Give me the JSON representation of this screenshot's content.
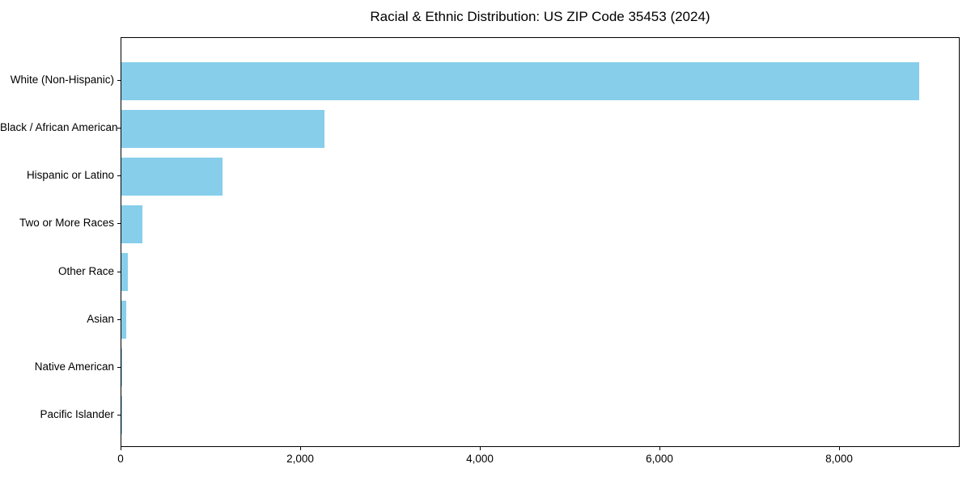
{
  "chart_data": {
    "type": "bar",
    "orientation": "horizontal",
    "title": "Racial & Ethnic Distribution: US ZIP Code 35453 (2024)",
    "categories": [
      "White (Non-Hispanic)",
      "Black / African American",
      "Hispanic or Latino",
      "Two or More Races",
      "Other Race",
      "Asian",
      "Native American",
      "Pacific Islander"
    ],
    "values": [
      8880,
      2260,
      1130,
      235,
      70,
      50,
      8,
      2
    ],
    "xlabel": "",
    "ylabel": "",
    "xlim": [
      0,
      9324
    ],
    "x_ticks": [
      0,
      2000,
      4000,
      6000,
      8000
    ],
    "x_tick_labels": [
      "0",
      "2,000",
      "4,000",
      "6,000",
      "8,000"
    ],
    "bar_color": "#87CEEB",
    "grid": false,
    "legend": null,
    "plot_border_color": "#000000",
    "text_color": "#000000"
  }
}
